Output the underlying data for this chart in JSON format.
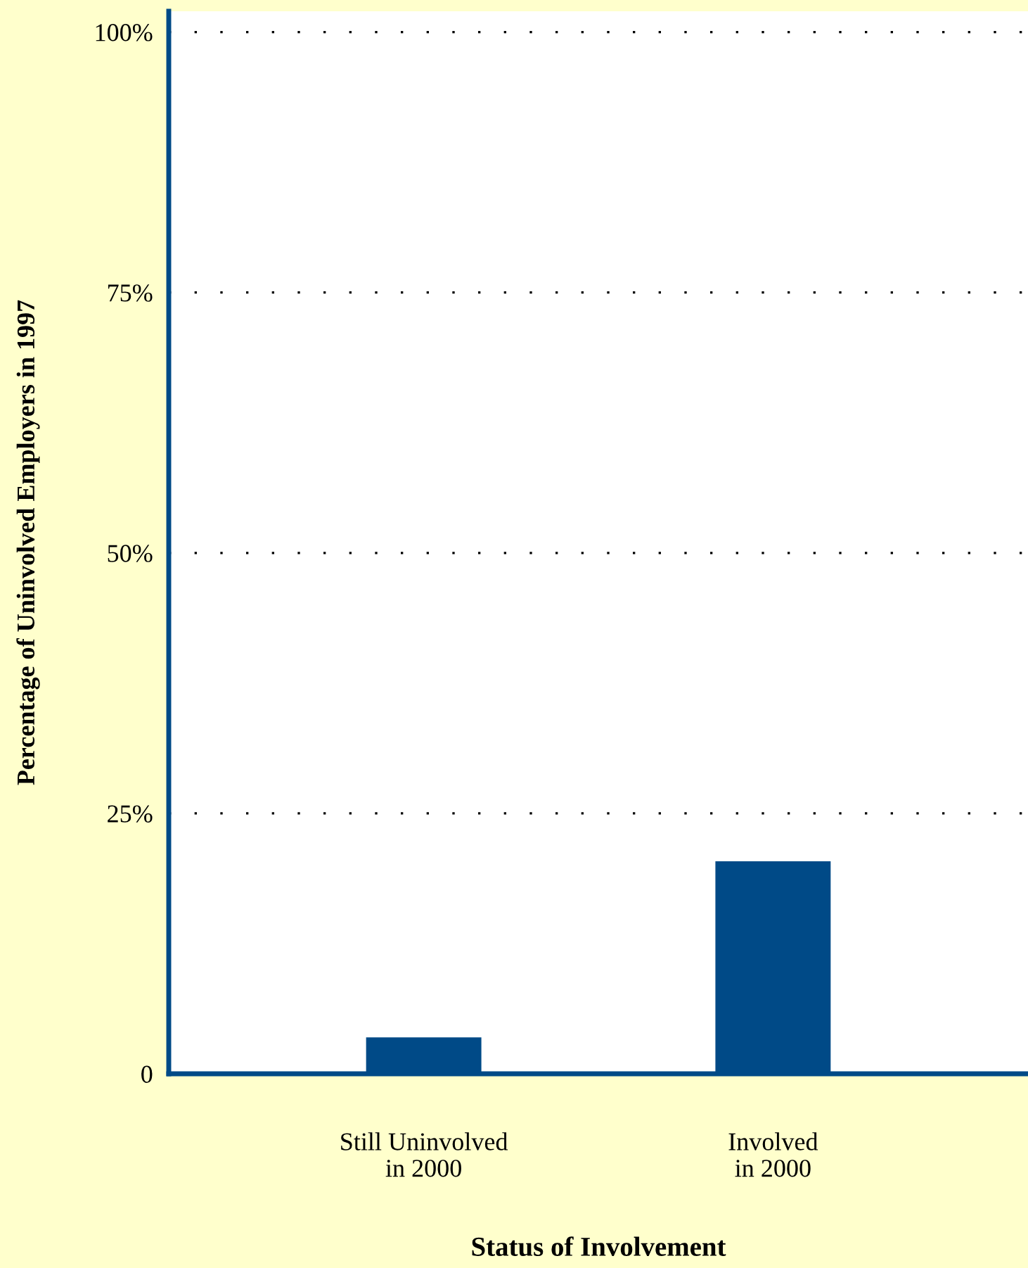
{
  "chart_data": {
    "type": "bar",
    "xlabel": "Status of Involvement",
    "ylabel": "Percentage of Uninvolved Employers in 1997",
    "categories": [
      "Still Uninvolved\nin 2000",
      "Involved\nin 2000"
    ],
    "values": [
      3.5,
      20.4
    ],
    "color": "#004a87",
    "ylim": [
      0,
      102
    ],
    "yticks": [
      {
        "value": 0,
        "label": "0"
      },
      {
        "value": 25,
        "label": "25%"
      },
      {
        "value": 50,
        "label": "50%"
      },
      {
        "value": 75,
        "label": "75%"
      },
      {
        "value": 100,
        "label": "100%"
      }
    ],
    "grid": "y",
    "line_style": "dotted"
  }
}
